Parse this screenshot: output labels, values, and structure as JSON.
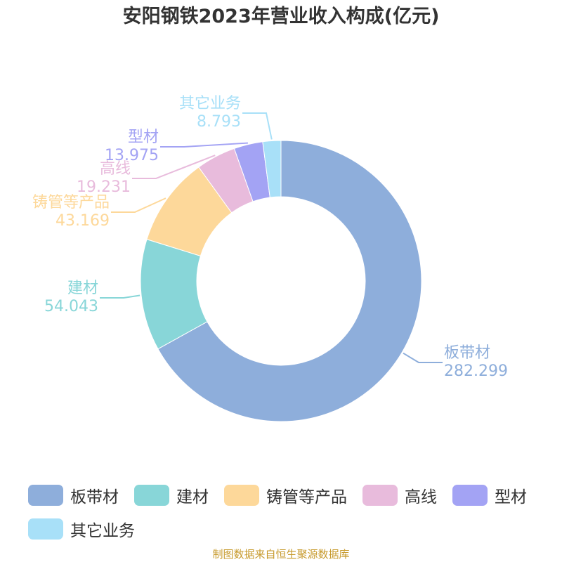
{
  "title": "安阳钢铁2023年营业收入构成(亿元)",
  "source": "制图数据来自恒生聚源数据库",
  "chart_data": {
    "type": "pie",
    "variant": "donut",
    "title": "安阳钢铁2023年营业收入构成(亿元)",
    "legend_position": "bottom",
    "series": [
      {
        "categories": [
          "板带材",
          "建材",
          "铸管等产品",
          "高线",
          "型材",
          "其它业务"
        ],
        "values": [
          282.299,
          54.043,
          43.169,
          19.231,
          13.975,
          8.793
        ],
        "value_labels": [
          "282.299",
          "54.043",
          "43.169",
          "19.231",
          "13.975",
          "8.793"
        ],
        "colors": [
          "#8eaedb",
          "#88d6d8",
          "#fdd89a",
          "#e8bbdc",
          "#a3a3f4",
          "#a8e0f8"
        ]
      }
    ]
  }
}
